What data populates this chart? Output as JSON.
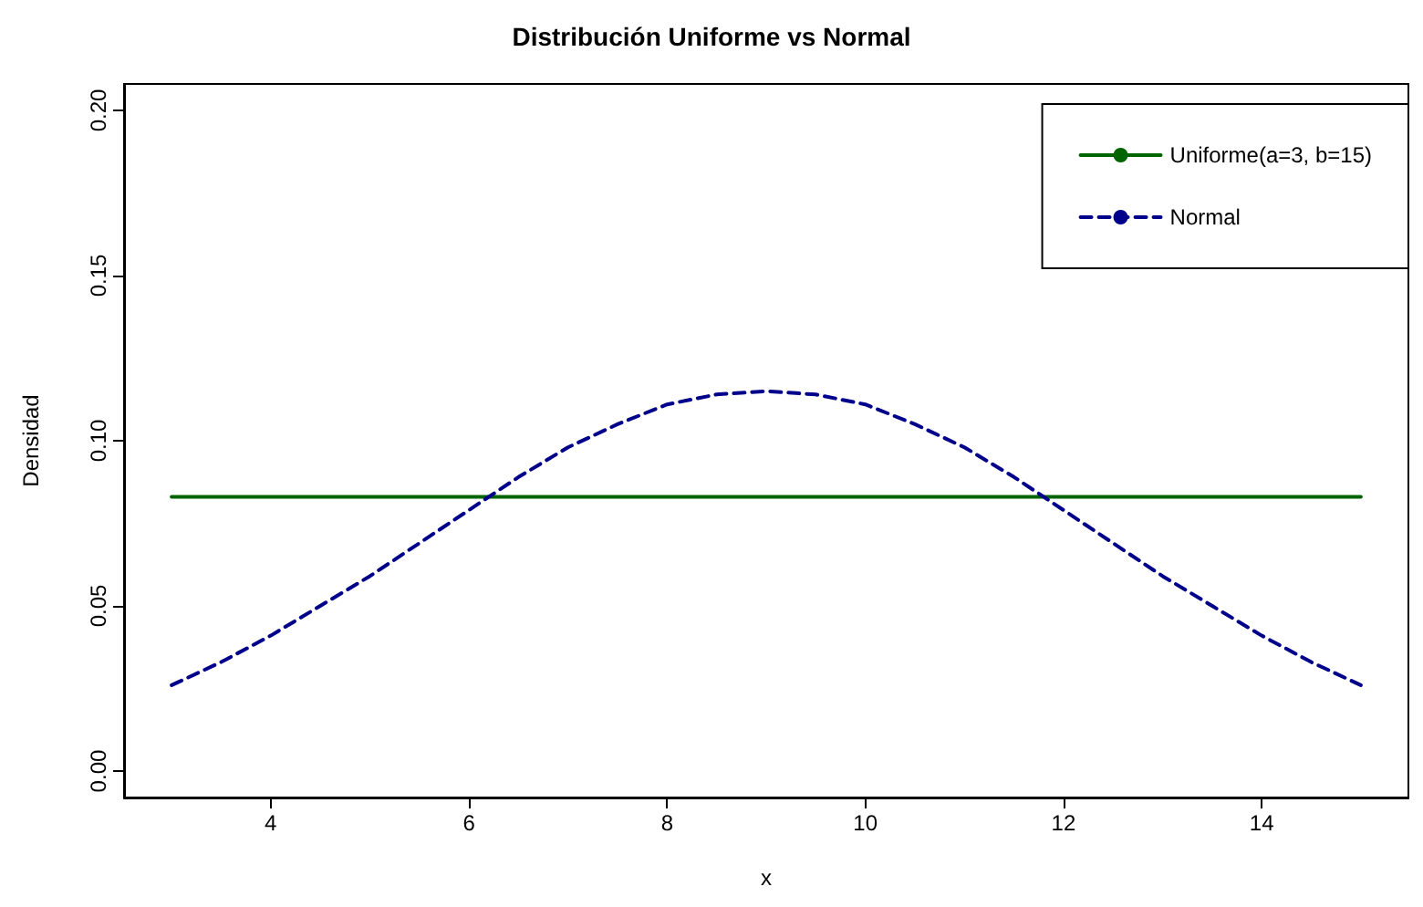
{
  "chart_data": {
    "type": "line",
    "title": "Distribución Uniforme vs Normal",
    "xlabel": "x",
    "ylabel": "Densidad",
    "xlim": [
      2.52,
      15.48
    ],
    "xticks": [
      4,
      6,
      8,
      10,
      12,
      14
    ],
    "ylim": [
      -0.008,
      0.208
    ],
    "yticks": [
      {
        "value": 0,
        "label": "0.00"
      },
      {
        "value": 0.05,
        "label": "0.05"
      },
      {
        "value": 0.1,
        "label": "0.10"
      },
      {
        "value": 0.15,
        "label": "0.15"
      },
      {
        "value": 0.2,
        "label": "0.20"
      }
    ],
    "grid": false,
    "legend": "top right",
    "marker": "none",
    "series": [
      {
        "name": "Uniforme(a=3, b=15)",
        "color": "#006400",
        "line_style": "solid",
        "x": [
          3,
          15
        ],
        "values": [
          0.083,
          0.083
        ]
      },
      {
        "name": "Normal",
        "color": "#00008b",
        "line_style": "dashed",
        "x": [
          3,
          3.5,
          4,
          4.5,
          5,
          5.5,
          6,
          6.5,
          7,
          7.5,
          8,
          8.5,
          9,
          9.5,
          10,
          10.5,
          11,
          11.5,
          12,
          12.5,
          13,
          13.5,
          14,
          14.5,
          15
        ],
        "values": [
          0.026,
          0.033,
          0.041,
          0.05,
          0.059,
          0.069,
          0.079,
          0.089,
          0.098,
          0.105,
          0.111,
          0.114,
          0.115,
          0.114,
          0.111,
          0.105,
          0.098,
          0.089,
          0.079,
          0.069,
          0.059,
          0.05,
          0.041,
          0.033,
          0.026
        ]
      }
    ]
  }
}
